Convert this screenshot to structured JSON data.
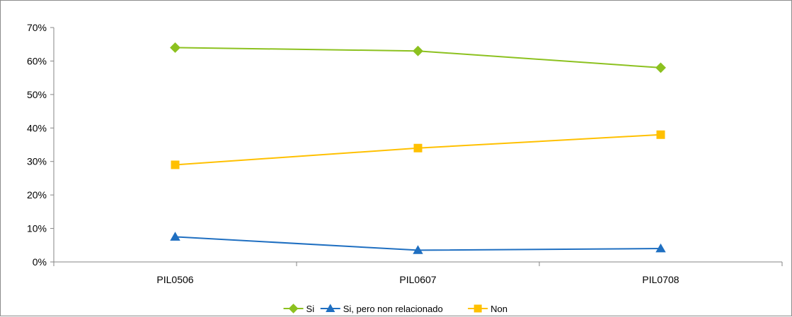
{
  "chart_data": {
    "type": "line",
    "categories": [
      "PIL0506",
      "PIL0607",
      "PIL0708"
    ],
    "y_tick_labels": [
      "0%",
      "10%",
      "20%",
      "30%",
      "40%",
      "50%",
      "60%",
      "70%"
    ],
    "ylim": [
      0,
      70
    ],
    "y_unit": "%",
    "grid": false,
    "legend_position": "bottom",
    "series": [
      {
        "name": "Si",
        "values": [
          64,
          63,
          58
        ],
        "color": "#8cc11f",
        "marker": "diamond"
      },
      {
        "name": "Si, pero non relacionado",
        "values": [
          7.5,
          3.5,
          4
        ],
        "color": "#1f6fc1",
        "marker": "triangle"
      },
      {
        "name": "Non",
        "values": [
          29,
          34,
          38
        ],
        "color": "#ffc000",
        "marker": "square"
      }
    ]
  }
}
